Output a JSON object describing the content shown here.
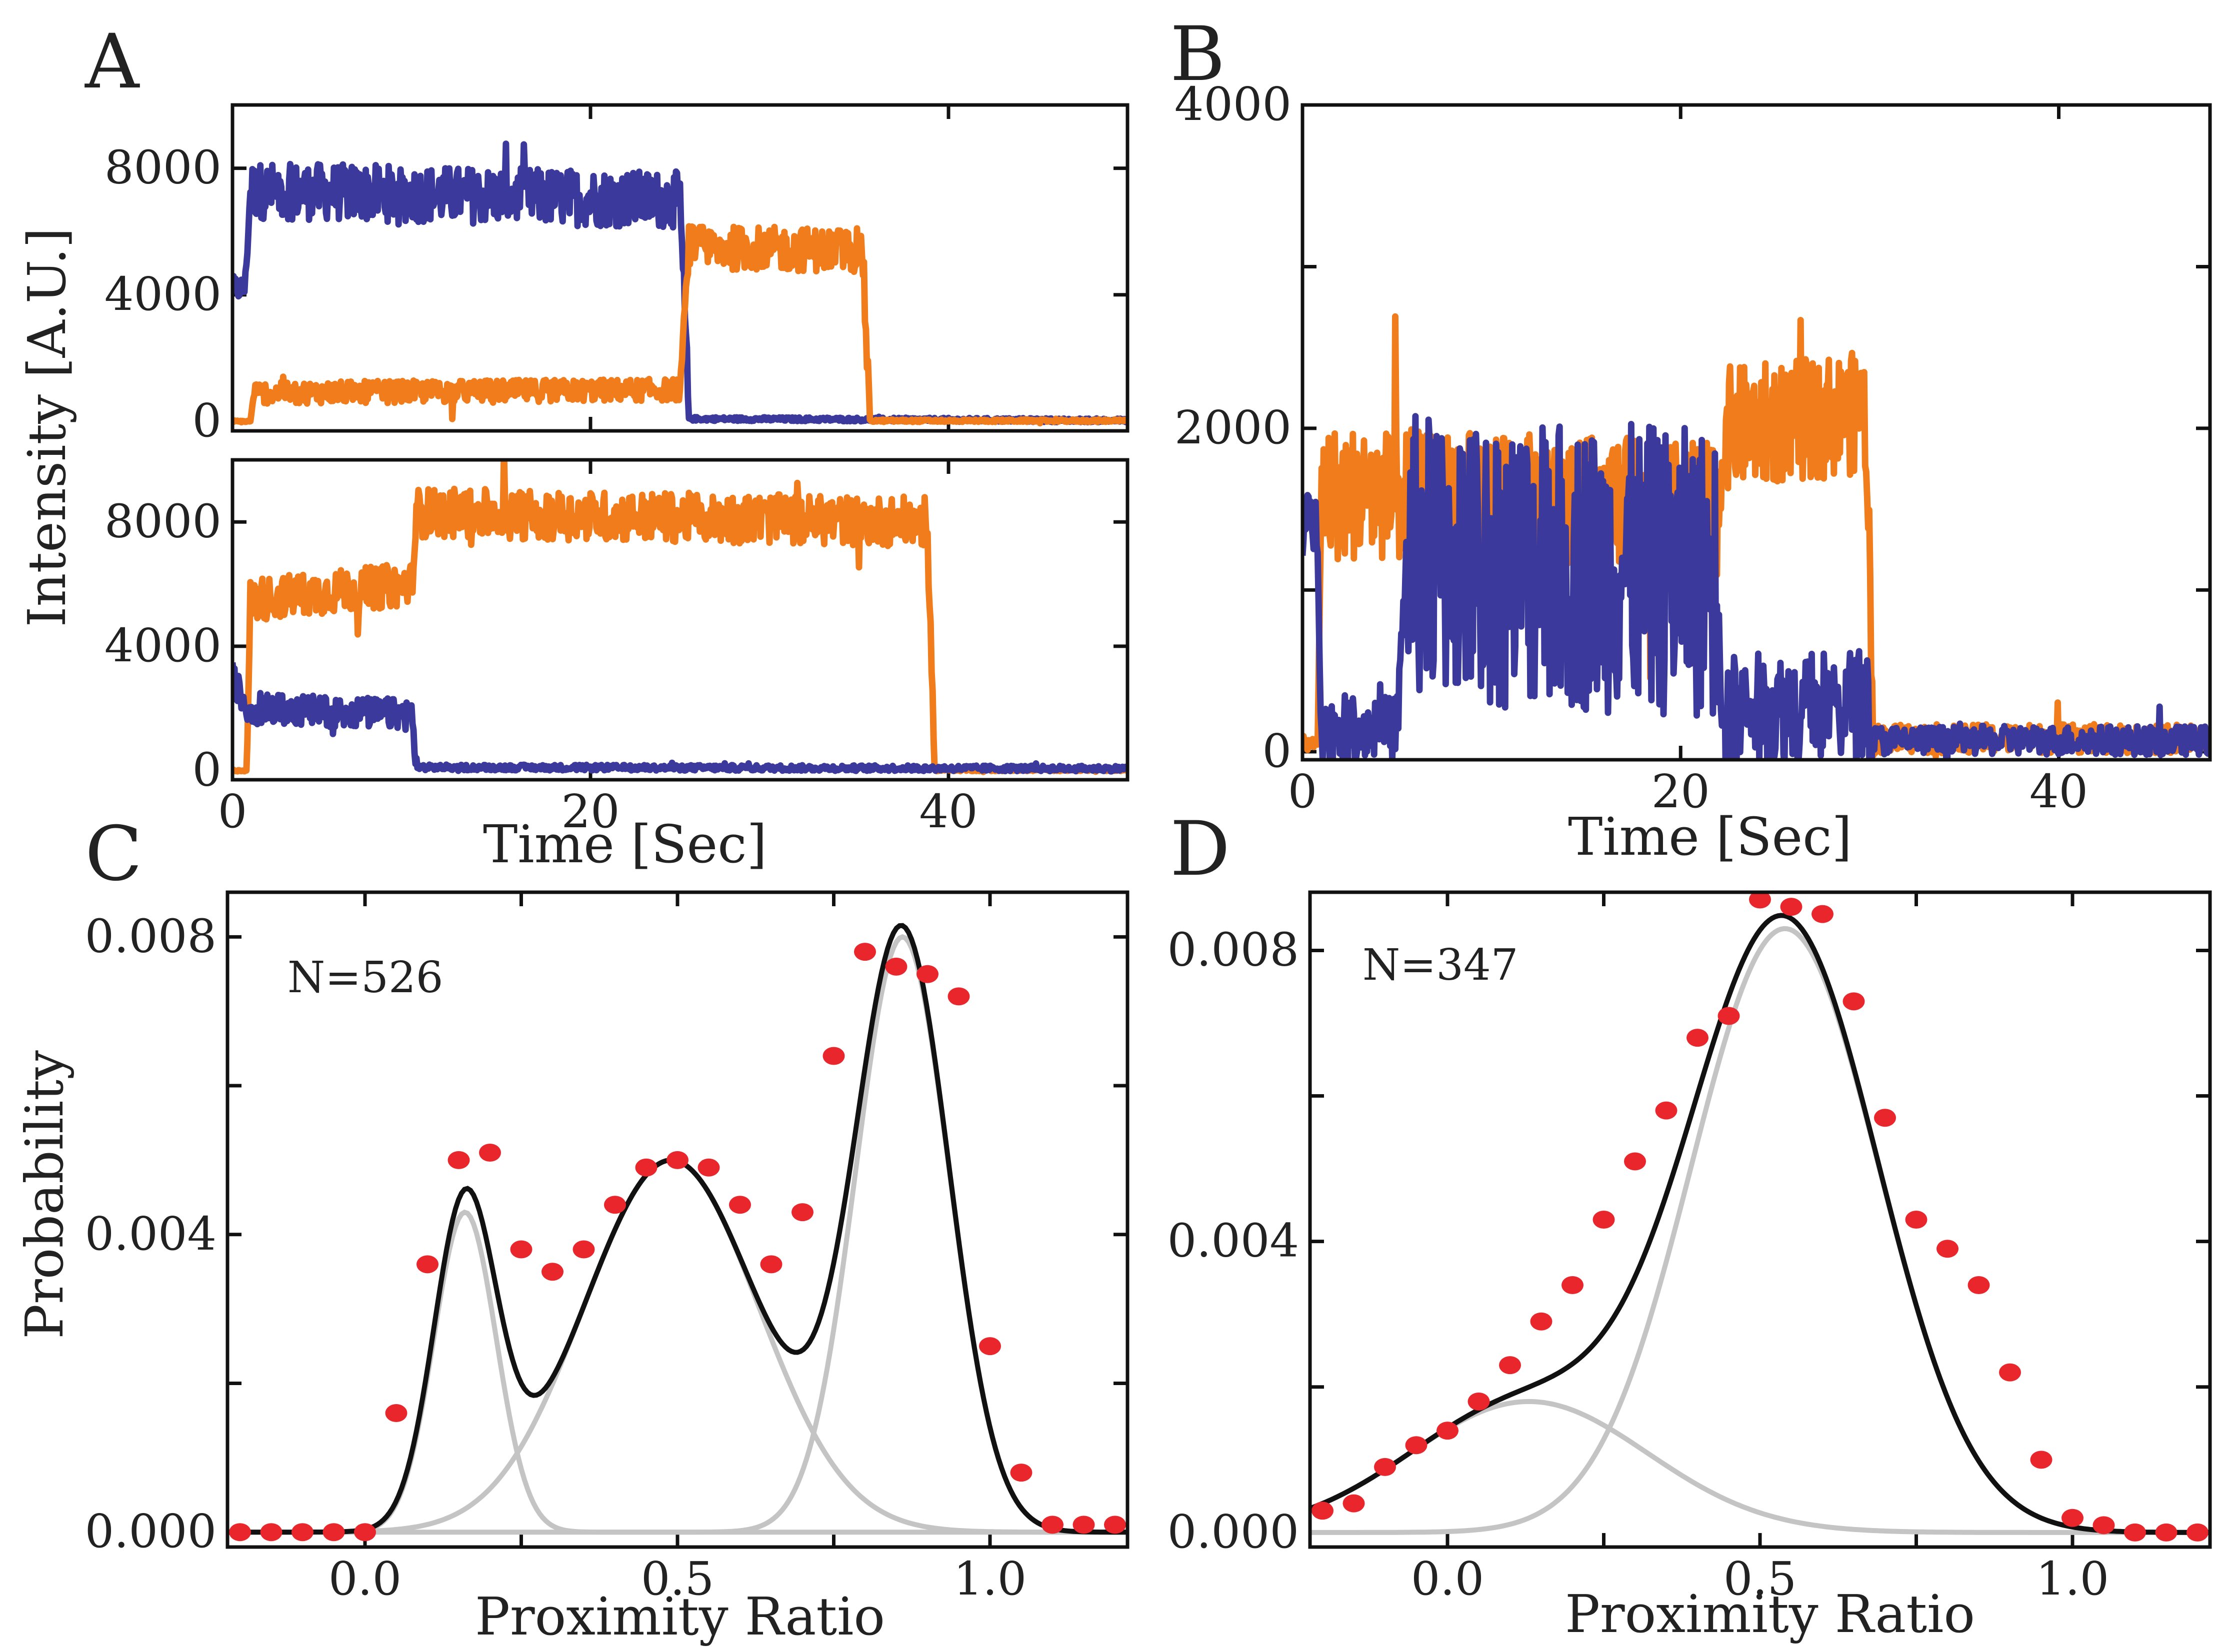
{
  "panels": {
    "A": {
      "letter": "A",
      "ylabel": "Intensity [A.U.]",
      "xlabel": "Time [Sec]"
    },
    "B": {
      "letter": "B",
      "xlabel": "Time [Sec]"
    },
    "C": {
      "letter": "C",
      "ylabel": "Probability",
      "xlabel": "Proximity Ratio",
      "annotation": "N=526"
    },
    "D": {
      "letter": "D",
      "xlabel": "Proximity Ratio",
      "annotation": "N=347"
    }
  },
  "colors": {
    "acceptor": "#f07c1c",
    "donor": "#3b3a9c",
    "points": "#e8262b",
    "fit_total": "#111111",
    "fit_components": "#c4c4c4"
  },
  "chart_data": [
    {
      "id": "A-top",
      "type": "line",
      "title": "",
      "xlabel": "",
      "ylabel": "Intensity [A.U.]",
      "xlim": [
        0,
        50
      ],
      "ylim": [
        -300,
        10000
      ],
      "yticks": [
        0,
        4000,
        8000
      ],
      "ytick_labels": [
        "0",
        "4000",
        "8000"
      ],
      "xticks": [
        0,
        20,
        40
      ],
      "show_xtick_labels": false,
      "series": [
        {
          "name": "donor",
          "color": "#3b3a9c",
          "segments": [
            [
              0,
              4200
            ],
            [
              0.7,
              4200
            ],
            [
              1.0,
              7300
            ],
            [
              25.0,
              7000
            ],
            [
              25.5,
              80
            ],
            [
              50,
              30
            ]
          ],
          "noise_amp": [
            400,
            400,
            900,
            900,
            60,
            60
          ]
        },
        {
          "name": "acceptor",
          "color": "#f07c1c",
          "segments": [
            [
              0,
              0
            ],
            [
              1.0,
              0
            ],
            [
              1.2,
              900
            ],
            [
              25.0,
              1000
            ],
            [
              25.5,
              5500
            ],
            [
              35.2,
              5400
            ],
            [
              35.6,
              20
            ],
            [
              50,
              20
            ]
          ],
          "noise_amp": [
            30,
            30,
            350,
            350,
            700,
            700,
            40,
            40
          ]
        }
      ]
    },
    {
      "id": "A-bottom",
      "type": "line",
      "title": "",
      "xlabel": "Time [Sec]",
      "ylabel": "",
      "xlim": [
        0,
        50
      ],
      "ylim": [
        -300,
        10000
      ],
      "yticks": [
        0,
        4000,
        8000
      ],
      "ytick_labels": [
        "0",
        "4000",
        "8000"
      ],
      "xticks": [
        0,
        20,
        40
      ],
      "xtick_labels": [
        "0",
        "20",
        "40"
      ],
      "series": [
        {
          "name": "acceptor",
          "color": "#f07c1c",
          "segments": [
            [
              0,
              0
            ],
            [
              0.8,
              0
            ],
            [
              1.0,
              5500
            ],
            [
              10.0,
              6000
            ],
            [
              10.3,
              8300
            ],
            [
              38.8,
              8000
            ],
            [
              39.2,
              20
            ],
            [
              50,
              20
            ]
          ],
          "noise_amp": [
            30,
            30,
            700,
            700,
            800,
            800,
            40,
            40
          ]
        },
        {
          "name": "donor",
          "color": "#3b3a9c",
          "segments": [
            [
              0,
              3000
            ],
            [
              0.8,
              2000
            ],
            [
              10.0,
              1800
            ],
            [
              10.3,
              100
            ],
            [
              50,
              60
            ]
          ],
          "noise_amp": [
            500,
            500,
            500,
            90,
            90
          ]
        }
      ]
    },
    {
      "id": "B",
      "type": "line",
      "title": "",
      "xlabel": "Time [Sec]",
      "ylabel": "",
      "xlim": [
        0,
        48
      ],
      "ylim": [
        -50,
        4000
      ],
      "yticks": [
        0,
        2000,
        4000
      ],
      "ytick_labels": [
        "0",
        "2000",
        "4000"
      ],
      "minor_yticks": [
        1000,
        3000
      ],
      "xticks": [
        0,
        20,
        40
      ],
      "xtick_labels": [
        "0",
        "20",
        "40"
      ],
      "series": [
        {
          "name": "acceptor",
          "color": "#f07c1c",
          "segments": [
            [
              0,
              50
            ],
            [
              0.8,
              50
            ],
            [
              1.0,
              1600
            ],
            [
              22.0,
              1500
            ],
            [
              22.3,
              2000
            ],
            [
              29.8,
              2100
            ],
            [
              30.2,
              80
            ],
            [
              48,
              80
            ]
          ],
          "noise_amp": [
            40,
            40,
            420,
            420,
            380,
            380,
            90,
            90
          ]
        },
        {
          "name": "donor",
          "color": "#3b3a9c",
          "segments": [
            [
              0,
              1400
            ],
            [
              0.8,
              1400
            ],
            [
              1.0,
              150
            ],
            [
              5.0,
              150
            ],
            [
              5.5,
              1200
            ],
            [
              22.0,
              1100
            ],
            [
              22.5,
              250
            ],
            [
              29.8,
              300
            ],
            [
              30.2,
              70
            ],
            [
              48,
              70
            ]
          ],
          "noise_amp": [
            200,
            200,
            200,
            200,
            900,
            900,
            350,
            350,
            90,
            90
          ]
        }
      ]
    },
    {
      "id": "C",
      "type": "scatter",
      "title": "",
      "xlabel": "Proximity Ratio",
      "ylabel": "Probability",
      "annotation": "N=526",
      "xlim": [
        -0.22,
        1.22
      ],
      "ylim": [
        -0.0002,
        0.0086
      ],
      "xticks": [
        0.0,
        0.5,
        1.0
      ],
      "xtick_labels": [
        "0.0",
        "0.5",
        "1.0"
      ],
      "minor_xticks": [
        -0.25,
        0.25,
        0.75
      ],
      "yticks": [
        0.0,
        0.004,
        0.008
      ],
      "ytick_labels": [
        "0.000",
        "0.004",
        "0.008"
      ],
      "minor_yticks": [
        0.002,
        0.006
      ],
      "points": {
        "x": [
          -0.2,
          -0.15,
          -0.1,
          -0.05,
          0.0,
          0.05,
          0.1,
          0.15,
          0.2,
          0.25,
          0.3,
          0.35,
          0.4,
          0.45,
          0.5,
          0.55,
          0.6,
          0.65,
          0.7,
          0.75,
          0.8,
          0.85,
          0.9,
          0.95,
          1.0,
          1.05,
          1.1,
          1.15,
          1.2
        ],
        "y": [
          0.0,
          0.0,
          0.0,
          0.0,
          0.0,
          0.0016,
          0.0036,
          0.005,
          0.0051,
          0.0038,
          0.0035,
          0.0038,
          0.0044,
          0.0049,
          0.005,
          0.0049,
          0.0044,
          0.0036,
          0.0043,
          0.0064,
          0.0078,
          0.0076,
          0.0075,
          0.0072,
          0.0025,
          0.0008,
          0.0001,
          0.0001,
          0.0001
        ]
      },
      "components": [
        {
          "center": 0.16,
          "sigma": 0.05,
          "amplitude": 0.0043
        },
        {
          "center": 0.49,
          "sigma": 0.14,
          "amplitude": 0.005
        },
        {
          "center": 0.86,
          "sigma": 0.075,
          "amplitude": 0.008
        }
      ]
    },
    {
      "id": "D",
      "type": "scatter",
      "title": "",
      "xlabel": "Proximity Ratio",
      "ylabel": "",
      "annotation": "N=347",
      "xlim": [
        -0.22,
        1.22
      ],
      "ylim": [
        -0.0002,
        0.0088
      ],
      "xticks": [
        0.0,
        0.5,
        1.0
      ],
      "xtick_labels": [
        "0.0",
        "0.5",
        "1.0"
      ],
      "minor_xticks": [
        -0.25,
        0.25,
        0.75
      ],
      "yticks": [
        0.0,
        0.004,
        0.008
      ],
      "ytick_labels": [
        "0.000",
        "0.004",
        "0.008"
      ],
      "minor_yticks": [
        0.002,
        0.006
      ],
      "points": {
        "x": [
          -0.2,
          -0.15,
          -0.1,
          -0.05,
          0.0,
          0.05,
          0.1,
          0.15,
          0.2,
          0.25,
          0.3,
          0.35,
          0.4,
          0.45,
          0.5,
          0.55,
          0.6,
          0.65,
          0.7,
          0.75,
          0.8,
          0.85,
          0.9,
          0.95,
          1.0,
          1.05,
          1.1,
          1.15,
          1.2
        ],
        "y": [
          0.0003,
          0.0004,
          0.0009,
          0.0012,
          0.0014,
          0.0018,
          0.0023,
          0.0029,
          0.0034,
          0.0043,
          0.0051,
          0.0058,
          0.0068,
          0.0071,
          0.0087,
          0.0086,
          0.0085,
          0.0073,
          0.0057,
          0.0043,
          0.0039,
          0.0034,
          0.0022,
          0.001,
          0.0002,
          0.0001,
          0.0,
          0.0,
          0.0
        ]
      },
      "components": [
        {
          "center": 0.13,
          "sigma": 0.19,
          "amplitude": 0.0018
        },
        {
          "center": 0.54,
          "sigma": 0.15,
          "amplitude": 0.0083
        }
      ]
    }
  ]
}
